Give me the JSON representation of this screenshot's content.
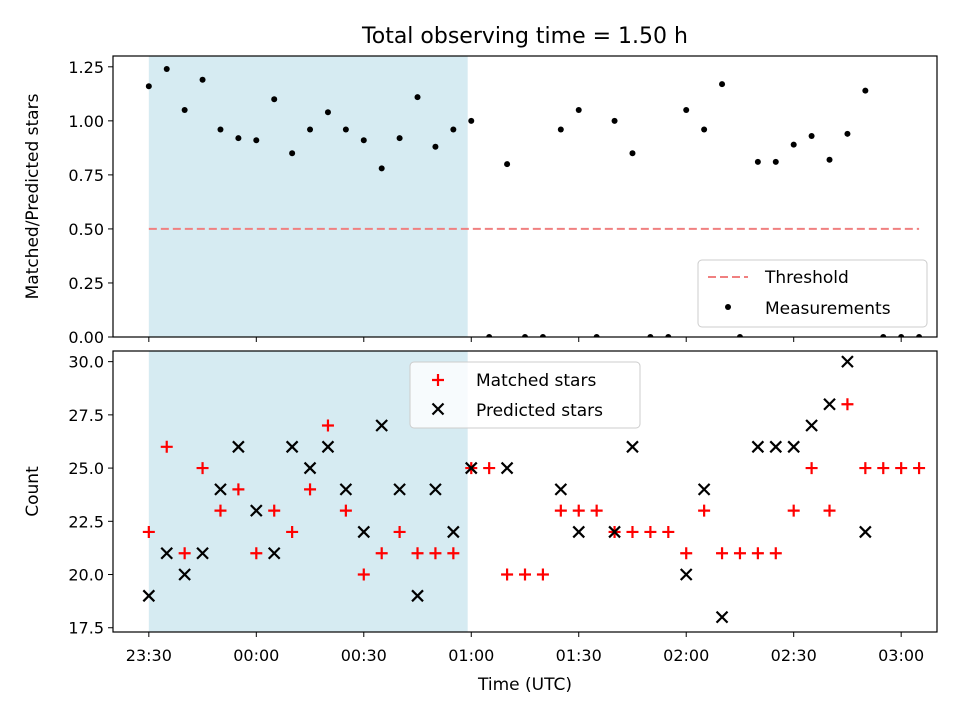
{
  "title": "Total observing time = 1.50 h",
  "colors": {
    "shade": "#add8e6",
    "threshold": "#f08080",
    "measurement": "#000000",
    "matched": "#ff0000",
    "predicted": "#000000"
  },
  "chart_data": [
    {
      "type": "scatter",
      "title": "Total observing time = 1.50 h",
      "xlabel": "",
      "ylabel": "Matched/Predicted stars",
      "x_unit": "time",
      "xlim": [
        "23:20",
        "03:10"
      ],
      "ylim": [
        0,
        1.3
      ],
      "yticks": [
        0.0,
        0.25,
        0.5,
        0.75,
        1.0,
        1.25
      ],
      "ytick_labels": [
        "0.00",
        "0.25",
        "0.50",
        "0.75",
        "1.00",
        "1.25"
      ],
      "shaded_region": [
        "23:30",
        "00:59"
      ],
      "threshold": {
        "name": "Threshold",
        "value": 0.5,
        "x_range": [
          "23:30",
          "03:05"
        ]
      },
      "legend_position": "lower-right",
      "series": [
        {
          "name": "Measurements",
          "x": [
            "23:30",
            "23:35",
            "23:40",
            "23:45",
            "23:50",
            "23:55",
            "00:00",
            "00:05",
            "00:10",
            "00:15",
            "00:20",
            "00:25",
            "00:30",
            "00:35",
            "00:40",
            "00:45",
            "00:50",
            "00:55",
            "01:00",
            "01:05",
            "01:10",
            "01:15",
            "01:20",
            "01:25",
            "01:30",
            "01:35",
            "01:40",
            "01:45",
            "01:50",
            "01:55",
            "02:00",
            "02:05",
            "02:10",
            "02:15",
            "02:20",
            "02:25",
            "02:30",
            "02:35",
            "02:40",
            "02:45",
            "02:50",
            "02:55",
            "03:00",
            "03:05"
          ],
          "y": [
            1.16,
            1.24,
            1.05,
            1.19,
            0.96,
            0.92,
            0.91,
            1.1,
            0.85,
            0.96,
            1.04,
            0.96,
            0.91,
            0.78,
            0.92,
            1.11,
            0.88,
            0.96,
            1.0,
            0.0,
            0.8,
            0.0,
            0.0,
            0.96,
            1.05,
            0.0,
            1.0,
            0.85,
            0.0,
            0.0,
            1.05,
            0.96,
            1.17,
            0.0,
            0.81,
            0.81,
            0.89,
            0.93,
            0.82,
            0.94,
            1.14,
            0.0,
            0.0,
            0.0
          ]
        }
      ]
    },
    {
      "type": "scatter",
      "xlabel": "Time (UTC)",
      "ylabel": "Count",
      "x_unit": "time",
      "xlim": [
        "23:20",
        "03:10"
      ],
      "ylim": [
        17.3,
        30.5
      ],
      "yticks": [
        17.5,
        20.0,
        22.5,
        25.0,
        27.5,
        30.0
      ],
      "ytick_labels": [
        "17.5",
        "20.0",
        "22.5",
        "25.0",
        "27.5",
        "30.0"
      ],
      "xticks": [
        "23:30",
        "00:00",
        "00:30",
        "01:00",
        "01:30",
        "02:00",
        "02:30",
        "03:00"
      ],
      "shaded_region": [
        "23:30",
        "00:59"
      ],
      "legend_position": "top-center",
      "series": [
        {
          "name": "Matched stars",
          "x": [
            "23:30",
            "23:35",
            "23:40",
            "23:45",
            "23:50",
            "23:55",
            "00:00",
            "00:05",
            "00:10",
            "00:15",
            "00:20",
            "00:25",
            "00:30",
            "00:35",
            "00:40",
            "00:45",
            "00:50",
            "00:55",
            "01:00",
            "01:05",
            "01:10",
            "01:15",
            "01:20",
            "01:25",
            "01:30",
            "01:35",
            "01:40",
            "01:45",
            "01:50",
            "01:55",
            "02:00",
            "02:05",
            "02:10",
            "02:15",
            "02:20",
            "02:25",
            "02:30",
            "02:35",
            "02:40",
            "02:45",
            "02:50",
            "02:55",
            "03:00",
            "03:05"
          ],
          "y": [
            22,
            26,
            21,
            25,
            23,
            24,
            21,
            23,
            22,
            24,
            27,
            23,
            20,
            21,
            22,
            21,
            21,
            21,
            25,
            25,
            20,
            20,
            20,
            23,
            23,
            23,
            22,
            22,
            22,
            22,
            21,
            23,
            21,
            21,
            21,
            21,
            23,
            25,
            23,
            28,
            25,
            25,
            25,
            25
          ]
        },
        {
          "name": "Predicted stars",
          "x": [
            "23:30",
            "23:35",
            "23:40",
            "23:45",
            "23:50",
            "23:55",
            "00:00",
            "00:05",
            "00:10",
            "00:15",
            "00:20",
            "00:25",
            "00:30",
            "00:35",
            "00:40",
            "00:45",
            "00:50",
            "00:55",
            "01:00",
            "01:10",
            "01:25",
            "01:30",
            "01:40",
            "01:45",
            "02:00",
            "02:05",
            "02:10",
            "02:20",
            "02:25",
            "02:30",
            "02:35",
            "02:40",
            "02:45",
            "02:50"
          ],
          "y": [
            19,
            21,
            20,
            21,
            24,
            26,
            23,
            21,
            26,
            25,
            26,
            24,
            22,
            27,
            24,
            19,
            24,
            22,
            25,
            25,
            24,
            22,
            22,
            26,
            20,
            24,
            18,
            26,
            26,
            26,
            27,
            28,
            30,
            22
          ]
        }
      ]
    }
  ]
}
